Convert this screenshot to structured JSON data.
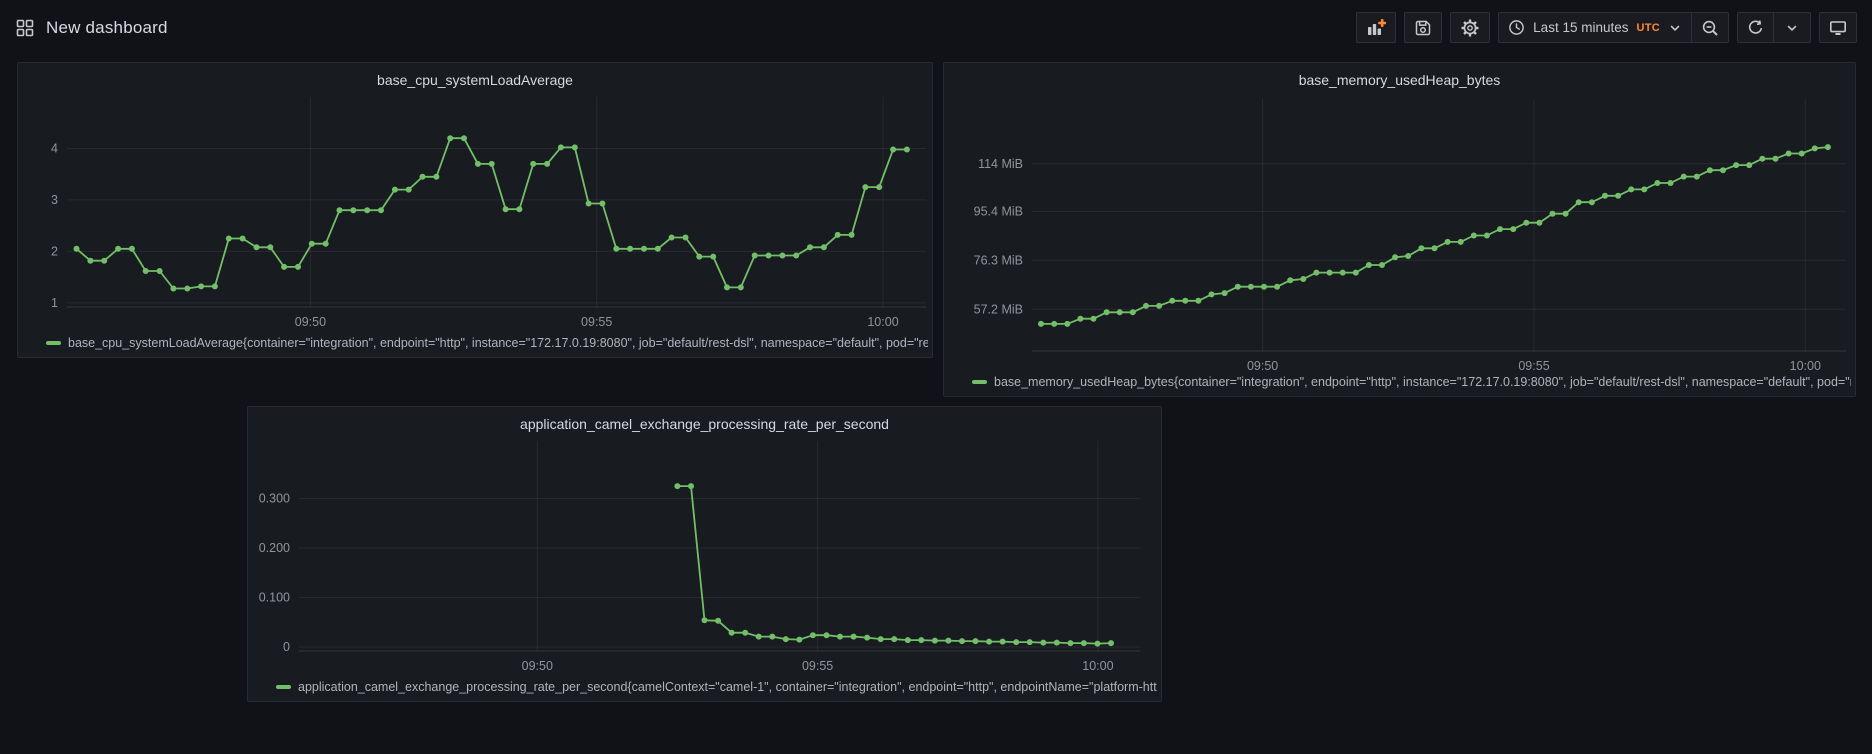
{
  "header": {
    "title": "New dashboard",
    "toolbar": {
      "time_range_label": "Last 15 minutes",
      "timezone_label": "UTC"
    }
  },
  "colors": {
    "page_bg": "#111217",
    "panel_bg": "#181b1f",
    "series_green": "#73bf69",
    "accent_orange": "#ff8833",
    "text_primary": "#d8d9e3",
    "text_axis": "rgba(204,204,220,0.68)"
  },
  "chart_data": [
    {
      "type": "line",
      "title": "base_cpu_systemLoadAverage",
      "xlabel": "",
      "ylabel": "",
      "grid": true,
      "legend_position": "bottom",
      "x_ticks": [
        {
          "t": 255,
          "label": "09:50"
        },
        {
          "t": 555,
          "label": "09:55"
        },
        {
          "t": 855,
          "label": "10:00"
        }
      ],
      "y_ticks": [
        {
          "v": 1,
          "label": "1"
        },
        {
          "v": 2,
          "label": "2"
        },
        {
          "v": 3,
          "label": "3"
        },
        {
          "v": 4,
          "label": "4"
        }
      ],
      "xlim_seconds": [
        0,
        900
      ],
      "ylim": [
        0.92,
        5.0
      ],
      "color": "#73bf69",
      "series": [
        {
          "name": "base_cpu_systemLoadAverage{container=\"integration\", endpoint=\"http\", instance=\"172.17.0.19:8080\", job=\"default/rest-dsl\", namespace=\"default\", pod=\"rest-d",
          "t_start": 10,
          "t_step": 14.5,
          "values": [
            2.05,
            1.82,
            1.82,
            2.05,
            2.05,
            1.62,
            1.62,
            1.28,
            1.28,
            1.32,
            1.32,
            2.25,
            2.25,
            2.08,
            2.08,
            1.7,
            1.7,
            2.15,
            2.15,
            2.8,
            2.8,
            2.8,
            2.8,
            3.2,
            3.2,
            3.45,
            3.45,
            4.2,
            4.2,
            3.7,
            3.7,
            2.82,
            2.82,
            3.7,
            3.7,
            4.02,
            4.02,
            2.93,
            2.93,
            2.05,
            2.05,
            2.05,
            2.05,
            2.27,
            2.27,
            1.9,
            1.9,
            1.3,
            1.3,
            1.92,
            1.92,
            1.92,
            1.92,
            2.08,
            2.08,
            2.32,
            2.32,
            3.25,
            3.25,
            3.98,
            3.98
          ]
        }
      ]
    },
    {
      "type": "line",
      "title": "base_memory_usedHeap_bytes",
      "xlabel": "",
      "ylabel": "",
      "grid": true,
      "legend_position": "bottom",
      "x_ticks": [
        {
          "t": 255,
          "label": "09:50"
        },
        {
          "t": 555,
          "label": "09:55"
        },
        {
          "t": 855,
          "label": "10:00"
        }
      ],
      "y_ticks": [
        {
          "v": 57.2,
          "label": "57.2 MiB"
        },
        {
          "v": 76.3,
          "label": "76.3 MiB"
        },
        {
          "v": 95.4,
          "label": "95.4 MiB"
        },
        {
          "v": 114,
          "label": "114 MiB"
        }
      ],
      "xlim_seconds": [
        0,
        900
      ],
      "ylim": [
        40.9,
        139.3
      ],
      "unit": "MiB",
      "color": "#73bf69",
      "series": [
        {
          "name": "base_memory_usedHeap_bytes{container=\"integration\", endpoint=\"http\", instance=\"172.17.0.19:8080\", job=\"default/rest-dsl\", namespace=\"default\", pod=\"rest-",
          "t_start": 10,
          "t_step": 14.5,
          "values": [
            51.5,
            51.5,
            51.5,
            53.5,
            53.5,
            56,
            56,
            56,
            58.5,
            58.5,
            60.5,
            60.5,
            60.5,
            63,
            63.5,
            66,
            66,
            66,
            66,
            68.5,
            69,
            71.5,
            71.5,
            71.5,
            71.5,
            74.5,
            74.5,
            77.5,
            78,
            81,
            81,
            83.5,
            83.5,
            86,
            86,
            88.5,
            88.5,
            91,
            91,
            94.5,
            94.5,
            99,
            99,
            101.5,
            101.5,
            104,
            104,
            106.5,
            106.5,
            109,
            109,
            111.5,
            111.5,
            113.5,
            113.5,
            116,
            116,
            118,
            118,
            120,
            120.5
          ]
        }
      ]
    },
    {
      "type": "line",
      "title": "application_camel_exchange_processing_rate_per_second",
      "xlabel": "",
      "ylabel": "",
      "grid": true,
      "legend_position": "bottom",
      "x_ticks": [
        {
          "t": 255,
          "label": "09:50"
        },
        {
          "t": 555,
          "label": "09:55"
        },
        {
          "t": 855,
          "label": "10:00"
        }
      ],
      "y_ticks": [
        {
          "v": 0,
          "label": "0"
        },
        {
          "v": 0.1,
          "label": "0.100"
        },
        {
          "v": 0.2,
          "label": "0.200"
        },
        {
          "v": 0.3,
          "label": "0.300"
        }
      ],
      "xlim_seconds": [
        0,
        900
      ],
      "ylim": [
        -0.008,
        0.416
      ],
      "color": "#73bf69",
      "series": [
        {
          "name": "application_camel_exchange_processing_rate_per_second{camelContext=\"camel-1\", container=\"integration\", endpoint=\"http\", endpointName=\"platform-http:///",
          "t_start": 405,
          "t_step": 14.5,
          "values": [
            0.325,
            0.325,
            0.054,
            0.053,
            0.029,
            0.029,
            0.021,
            0.021,
            0.016,
            0.015,
            0.024,
            0.024,
            0.021,
            0.021,
            0.019,
            0.016,
            0.016,
            0.014,
            0.014,
            0.013,
            0.013,
            0.012,
            0.012,
            0.011,
            0.011,
            0.01,
            0.01,
            0.009,
            0.009,
            0.008,
            0.008,
            0.007,
            0.008
          ]
        }
      ]
    }
  ]
}
